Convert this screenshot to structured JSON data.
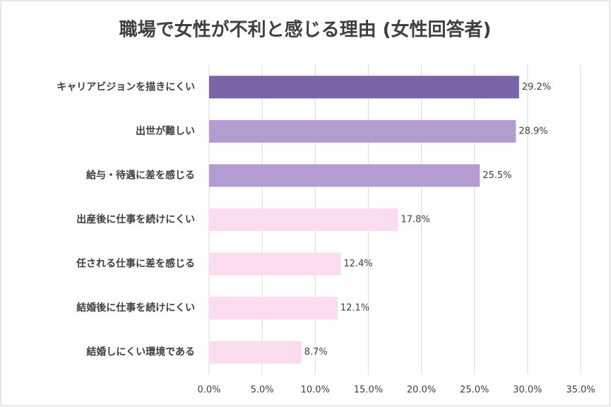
{
  "chart_data": {
    "type": "bar",
    "orientation": "horizontal",
    "title": "職場で女性が不利と感じる理由 (女性回答者)",
    "categories": [
      "キャリアビジョンを描きにくい",
      "出世が難しい",
      "給与・待遇に差を感じる",
      "出産後に仕事を続けにくい",
      "任される仕事に差を感じる",
      "結婚後に仕事を続けにくい",
      "結婚しにくい環境である"
    ],
    "values": [
      29.2,
      28.9,
      25.5,
      17.8,
      12.4,
      12.1,
      8.7
    ],
    "value_labels": [
      "29.2%",
      "28.9%",
      "25.5%",
      "17.8%",
      "12.4%",
      "12.1%",
      "8.7%"
    ],
    "colors": [
      "#7b64a6",
      "#b39ccf",
      "#b39ccf",
      "#fadcee",
      "#fadcee",
      "#fadcee",
      "#fadcee"
    ],
    "xlim": [
      0,
      35
    ],
    "xticks": [
      {
        "value": 0,
        "label": "0.0%"
      },
      {
        "value": 5,
        "label": "5.0%"
      },
      {
        "value": 10,
        "label": "10.0%"
      },
      {
        "value": 15,
        "label": "15.0%"
      },
      {
        "value": 20,
        "label": "20.0%"
      },
      {
        "value": 25,
        "label": "25.0%"
      },
      {
        "value": 30,
        "label": "30.0%"
      },
      {
        "value": 35,
        "label": "35.0%"
      }
    ],
    "grid": true
  }
}
